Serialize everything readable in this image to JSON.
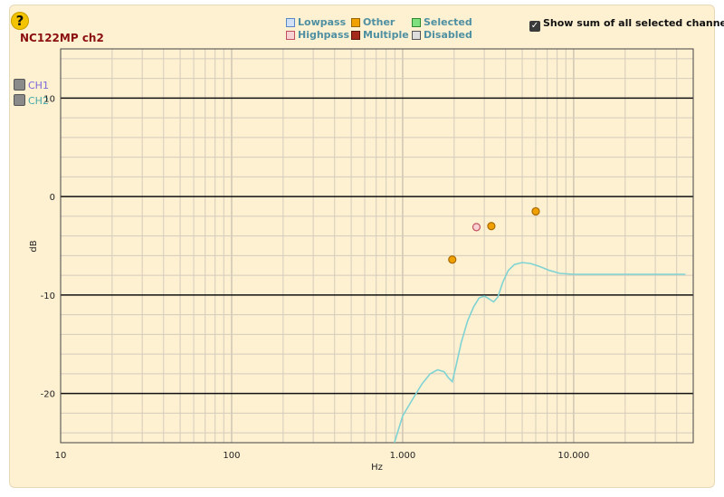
{
  "help": {
    "label": "?"
  },
  "header": {
    "title": "NC122MP ch2"
  },
  "channels": [
    {
      "label": "CH1",
      "color": "#7b68d8"
    },
    {
      "label": "CH2",
      "color": "#48a9a9"
    }
  ],
  "legend": [
    {
      "label": "Lowpass",
      "color": "#cfe0f7",
      "border": "#5b86c7"
    },
    {
      "label": "Other",
      "color": "#f0a000",
      "border": "#9a6400"
    },
    {
      "label": "Selected",
      "color": "#7fe07f",
      "border": "#2f8a2f"
    },
    {
      "label": "Highpass",
      "color": "#f8d2d2",
      "border": "#c05060"
    },
    {
      "label": "Multiple",
      "color": "#a52a1c",
      "border": "#5a140c"
    },
    {
      "label": "Disabled",
      "color": "#dddddd",
      "border": "#555555"
    }
  ],
  "show_sum": {
    "label": "Show sum of all selected channels",
    "checked": true
  },
  "chart_data": {
    "type": "line",
    "xlabel": "Hz",
    "ylabel": "dB",
    "xscale": "log",
    "xlim": [
      10,
      50000
    ],
    "ylim": [
      -25,
      15
    ],
    "xtick_labels": [
      {
        "value": 10,
        "label": "10"
      },
      {
        "value": 100,
        "label": "100"
      },
      {
        "value": 1000,
        "label": "1.000"
      },
      {
        "value": 10000,
        "label": "10.000"
      }
    ],
    "ytick_labels": [
      {
        "value": 10,
        "label": "10"
      },
      {
        "value": 0,
        "label": "0"
      },
      {
        "value": -10,
        "label": "-10"
      },
      {
        "value": -20,
        "label": "-20"
      }
    ],
    "grid": true,
    "series": [
      {
        "color": "#7fd3d3",
        "x": [
          895,
          1000,
          1150,
          1300,
          1450,
          1600,
          1750,
          1850,
          1950,
          2050,
          2200,
          2400,
          2600,
          2800,
          3000,
          3200,
          3400,
          3600,
          3850,
          4150,
          4500,
          5000,
          5600,
          6300,
          7200,
          8300,
          10000,
          13000,
          20000,
          30000,
          45000
        ],
        "y": [
          -25.0,
          -22.3,
          -20.5,
          -19.0,
          -18.0,
          -17.6,
          -17.8,
          -18.4,
          -18.8,
          -17.2,
          -14.8,
          -12.6,
          -11.2,
          -10.3,
          -10.1,
          -10.4,
          -10.7,
          -10.2,
          -8.7,
          -7.5,
          -6.9,
          -6.7,
          -6.8,
          -7.1,
          -7.5,
          -7.8,
          -7.9,
          -7.9,
          -7.9,
          -7.9,
          -7.9
        ]
      }
    ],
    "points": [
      {
        "x": 1950,
        "y": -6.4,
        "kind": "Other",
        "fill": "#f0a000",
        "stroke": "#a86a00"
      },
      {
        "x": 2700,
        "y": -3.1,
        "kind": "Highpass",
        "fill": "#f8d2d2",
        "stroke": "#c05060"
      },
      {
        "x": 3300,
        "y": -3.0,
        "kind": "Other",
        "fill": "#f0a000",
        "stroke": "#a86a00"
      },
      {
        "x": 6000,
        "y": -1.5,
        "kind": "Other",
        "fill": "#f0a000",
        "stroke": "#a86a00"
      }
    ]
  }
}
